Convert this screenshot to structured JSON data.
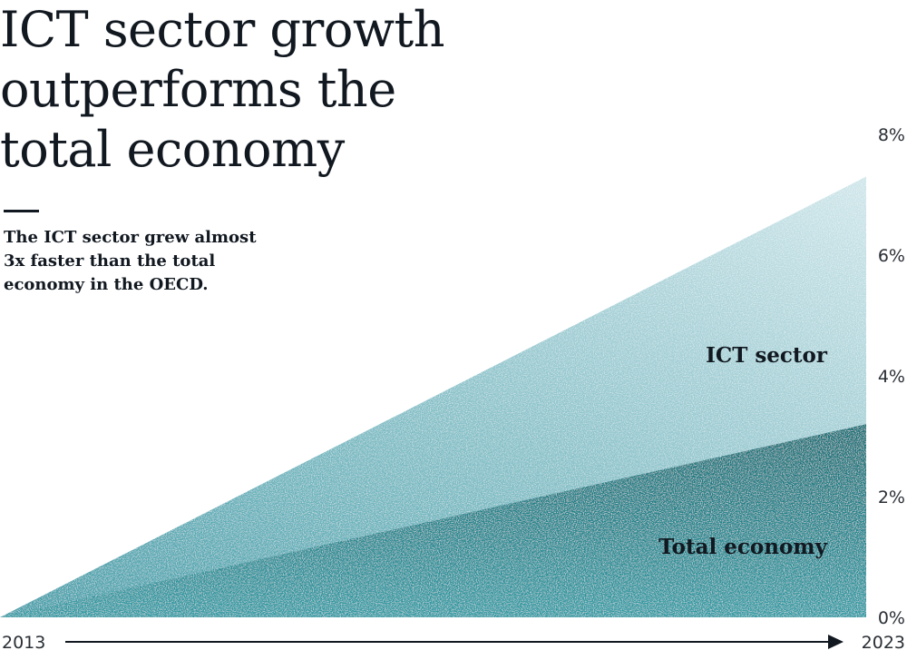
{
  "heading": {
    "title_lines": [
      "ICT sector growth",
      "outperforms the",
      "total economy"
    ],
    "subtitle_lines": [
      "The ICT sector grew almost",
      "3x faster than the total",
      "economy in the OECD."
    ]
  },
  "colors": {
    "ict_light": "#cfe6ea",
    "ict_dark": "#3a9aa6",
    "total_light": "#2f9aa4",
    "total_dark": "#0f6b73",
    "text": "#111820"
  },
  "chart_data": {
    "type": "area",
    "x": [
      "2013",
      "2023"
    ],
    "x_start_label": "2013",
    "x_end_label": "2023",
    "ylim": [
      0,
      8
    ],
    "y_ticks": [
      0,
      2,
      4,
      6,
      8
    ],
    "y_tick_labels": [
      "0%",
      "2%",
      "4%",
      "6%",
      "8%"
    ],
    "y_axis_position": "right",
    "grid": false,
    "series": [
      {
        "name": "ICT sector",
        "values": [
          0,
          7.3
        ]
      },
      {
        "name": "Total economy",
        "values": [
          0,
          3.2
        ]
      }
    ]
  }
}
